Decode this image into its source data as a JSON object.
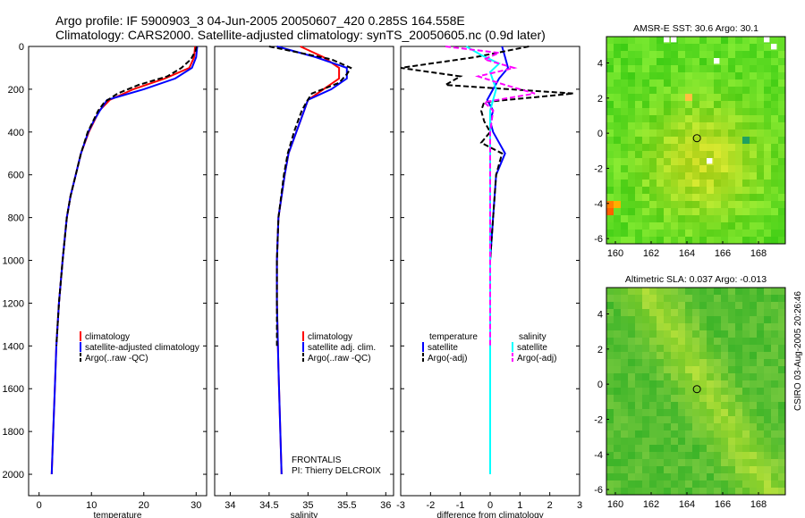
{
  "title_line1": "Argo profile: IF 5900903_3 04-Jun-2005 20050607_420 0.285S 164.558E",
  "title_line2": "Climatology: CARS2000. Satellite-adjusted climatology: synTS_20050605.nc (0.9d later)",
  "credit": "CSIRO 03-Aug-2005 20:26:46",
  "float_info": {
    "project": "FRONTALIS",
    "pi": "PI: Thierry DELCROIX"
  },
  "colors": {
    "climatology": "#ff0000",
    "satellite": "#0000ff",
    "argo": "#000000",
    "sat_diff_t": "#00ffff",
    "sat_diff_s": "#ff00ff"
  },
  "chart_data": [
    {
      "type": "line",
      "xlabel": "temperature",
      "ylabel": "",
      "xlim": [
        -2,
        32
      ],
      "ylim": [
        0,
        2100
      ],
      "y_reversed": true,
      "xticks": [
        "0",
        "10",
        "20",
        "30"
      ],
      "yticks": [
        "0",
        "200",
        "400",
        "600",
        "800",
        "1000",
        "1200",
        "1400",
        "1600",
        "1800",
        "2000"
      ],
      "legend": [
        "climatology",
        "satellite-adjusted climatology",
        "Argo(..raw -QC)"
      ],
      "series": [
        {
          "name": "climatology",
          "color": "#ff0000",
          "dash": "",
          "depth": [
            0,
            50,
            100,
            150,
            200,
            250,
            300,
            350,
            400,
            500,
            600,
            700,
            800,
            1000,
            1200,
            1400,
            1600,
            1800,
            2000
          ],
          "values": [
            29.8,
            29.6,
            28.7,
            24.0,
            18.0,
            13.5,
            11.5,
            10.5,
            9.5,
            8.0,
            7.0,
            6.0,
            5.3,
            4.5,
            3.8,
            3.3,
            3.0,
            2.7,
            2.4
          ]
        },
        {
          "name": "satellite-adjusted climatology",
          "color": "#0000ff",
          "dash": "",
          "depth": [
            0,
            50,
            100,
            150,
            200,
            250,
            300,
            350,
            400,
            500,
            600,
            700,
            800,
            1000,
            1200,
            1400,
            1600,
            1800,
            2000
          ],
          "values": [
            30.2,
            30.0,
            29.2,
            26.0,
            20.0,
            13.0,
            11.6,
            10.4,
            9.4,
            8.0,
            7.0,
            6.0,
            5.3,
            4.5,
            3.8,
            3.3,
            3.0,
            2.7,
            2.4
          ]
        },
        {
          "name": "Argo(..raw -QC)",
          "color": "#000000",
          "dash": "6,3",
          "depth": [
            0,
            20,
            60,
            100,
            140,
            180,
            220,
            260,
            300,
            350,
            400,
            500,
            600,
            700,
            800,
            1000,
            1200,
            1400
          ],
          "values": [
            30.1,
            29.9,
            29.0,
            27.2,
            24.5,
            19.0,
            15.0,
            12.5,
            11.3,
            10.3,
            9.3,
            8.0,
            7.0,
            6.0,
            5.3,
            4.5,
            3.8,
            3.3
          ]
        }
      ]
    },
    {
      "type": "line",
      "xlabel": "salinity",
      "ylabel": "",
      "xlim": [
        33.8,
        36.1
      ],
      "ylim": [
        0,
        2100
      ],
      "y_reversed": true,
      "xticks": [
        "34",
        "34.5",
        "35",
        "35.5",
        "36"
      ],
      "legend": [
        "climatology",
        "satellite adj. clim.",
        "Argo(..raw -QC)"
      ],
      "series": [
        {
          "name": "climatology",
          "color": "#ff0000",
          "dash": "",
          "depth": [
            0,
            50,
            100,
            150,
            200,
            250,
            300,
            350,
            400,
            500,
            600,
            800,
            1000,
            1200,
            1500,
            2000
          ],
          "values": [
            34.9,
            35.2,
            35.4,
            35.4,
            35.2,
            35.0,
            34.95,
            34.9,
            34.85,
            34.75,
            34.7,
            34.62,
            34.6,
            34.6,
            34.62,
            34.66
          ]
        },
        {
          "name": "satellite adj. clim.",
          "color": "#0000ff",
          "dash": "",
          "depth": [
            0,
            50,
            100,
            150,
            200,
            250,
            300,
            350,
            400,
            500,
            600,
            800,
            1000,
            1200,
            1500,
            2000
          ],
          "values": [
            34.6,
            35.1,
            35.5,
            35.5,
            35.3,
            35.0,
            34.95,
            34.9,
            34.85,
            34.75,
            34.7,
            34.62,
            34.6,
            34.6,
            34.62,
            34.66
          ]
        },
        {
          "name": "Argo(..raw -QC)",
          "color": "#000000",
          "dash": "6,3",
          "depth": [
            0,
            30,
            60,
            100,
            130,
            170,
            220,
            260,
            300,
            350,
            400,
            500,
            600,
            800,
            1000,
            1200,
            1400
          ],
          "values": [
            34.5,
            34.9,
            35.3,
            35.55,
            35.5,
            35.4,
            35.05,
            34.98,
            34.92,
            34.87,
            34.82,
            34.74,
            34.69,
            34.62,
            34.6,
            34.6,
            34.6
          ]
        }
      ]
    },
    {
      "type": "line",
      "xlabel": "difference from climatology",
      "ylabel": "",
      "xlim": [
        -3,
        3
      ],
      "ylim": [
        0,
        2100
      ],
      "y_reversed": true,
      "xticks": [
        "-3",
        "-2",
        "-1",
        "0",
        "1",
        "2",
        "3"
      ],
      "legend": [
        "temperature",
        "satellite",
        "Argo(-adj)",
        "salinity",
        "satellite",
        "Argo(-adj)"
      ],
      "series": [
        {
          "name": "satellite",
          "group": "temperature",
          "color": "#0000ff",
          "dash": "",
          "depth": [
            0,
            50,
            100,
            150,
            200,
            250,
            300,
            350,
            400,
            500,
            600,
            800,
            1000,
            1500,
            2000
          ],
          "values": [
            0.4,
            0.5,
            0.6,
            0.3,
            0.1,
            -0.1,
            0.1,
            0.0,
            0.1,
            0.5,
            0.2,
            0.1,
            0.0,
            0.0,
            0.0
          ]
        },
        {
          "name": "Argo(-adj)",
          "group": "temperature",
          "color": "#000000",
          "dash": "6,3",
          "depth": [
            0,
            50,
            100,
            140,
            180,
            220,
            260,
            300,
            350,
            400,
            450,
            500,
            600,
            800,
            1000,
            1400
          ],
          "values": [
            1.3,
            -0.5,
            -3.0,
            -1.0,
            -1.5,
            2.8,
            -0.2,
            -0.3,
            -0.2,
            0.0,
            -0.3,
            0.4,
            0.2,
            0.1,
            0.0,
            0.0
          ]
        },
        {
          "name": "satellite",
          "group": "salinity",
          "color": "#00ffff",
          "dash": "",
          "depth": [
            0,
            40,
            80,
            120,
            160,
            200,
            250,
            300,
            400,
            600,
            800,
            1000,
            1500,
            2000
          ],
          "values": [
            -0.8,
            -0.3,
            0.3,
            0.0,
            0.1,
            0.2,
            0.1,
            0.0,
            0.0,
            0.0,
            0.0,
            0.0,
            0.0,
            0.0
          ]
        },
        {
          "name": "Argo(-adj)",
          "group": "salinity",
          "color": "#ff00ff",
          "dash": "6,3",
          "depth": [
            0,
            30,
            60,
            100,
            140,
            180,
            220,
            260,
            300,
            400,
            600,
            800,
            1000,
            1400
          ],
          "values": [
            -1.5,
            0.3,
            -0.2,
            0.8,
            -0.4,
            0.5,
            1.5,
            -0.2,
            0.1,
            0.0,
            0.0,
            0.0,
            0.0,
            0.0
          ]
        }
      ]
    },
    {
      "type": "heatmap",
      "title": "AMSR-E SST: 30.6 Argo: 30.1",
      "xlim": [
        159.5,
        169.5
      ],
      "ylim": [
        -6.3,
        5.5
      ],
      "xticks": [
        "160",
        "162",
        "164",
        "166",
        "168"
      ],
      "yticks": [
        "4",
        "2",
        "0",
        "-2",
        "-4",
        "-6"
      ],
      "marker": {
        "lon": 164.558,
        "lat": -0.285
      }
    },
    {
      "type": "heatmap",
      "title": "Altimetric SLA: 0.037 Argo: -0.013",
      "xlim": [
        159.5,
        169.5
      ],
      "ylim": [
        -6.3,
        5.5
      ],
      "xticks": [
        "160",
        "162",
        "164",
        "166",
        "168"
      ],
      "yticks": [
        "4",
        "2",
        "0",
        "-2",
        "-4",
        "-6"
      ],
      "marker": {
        "lon": 164.558,
        "lat": -0.285
      }
    }
  ]
}
